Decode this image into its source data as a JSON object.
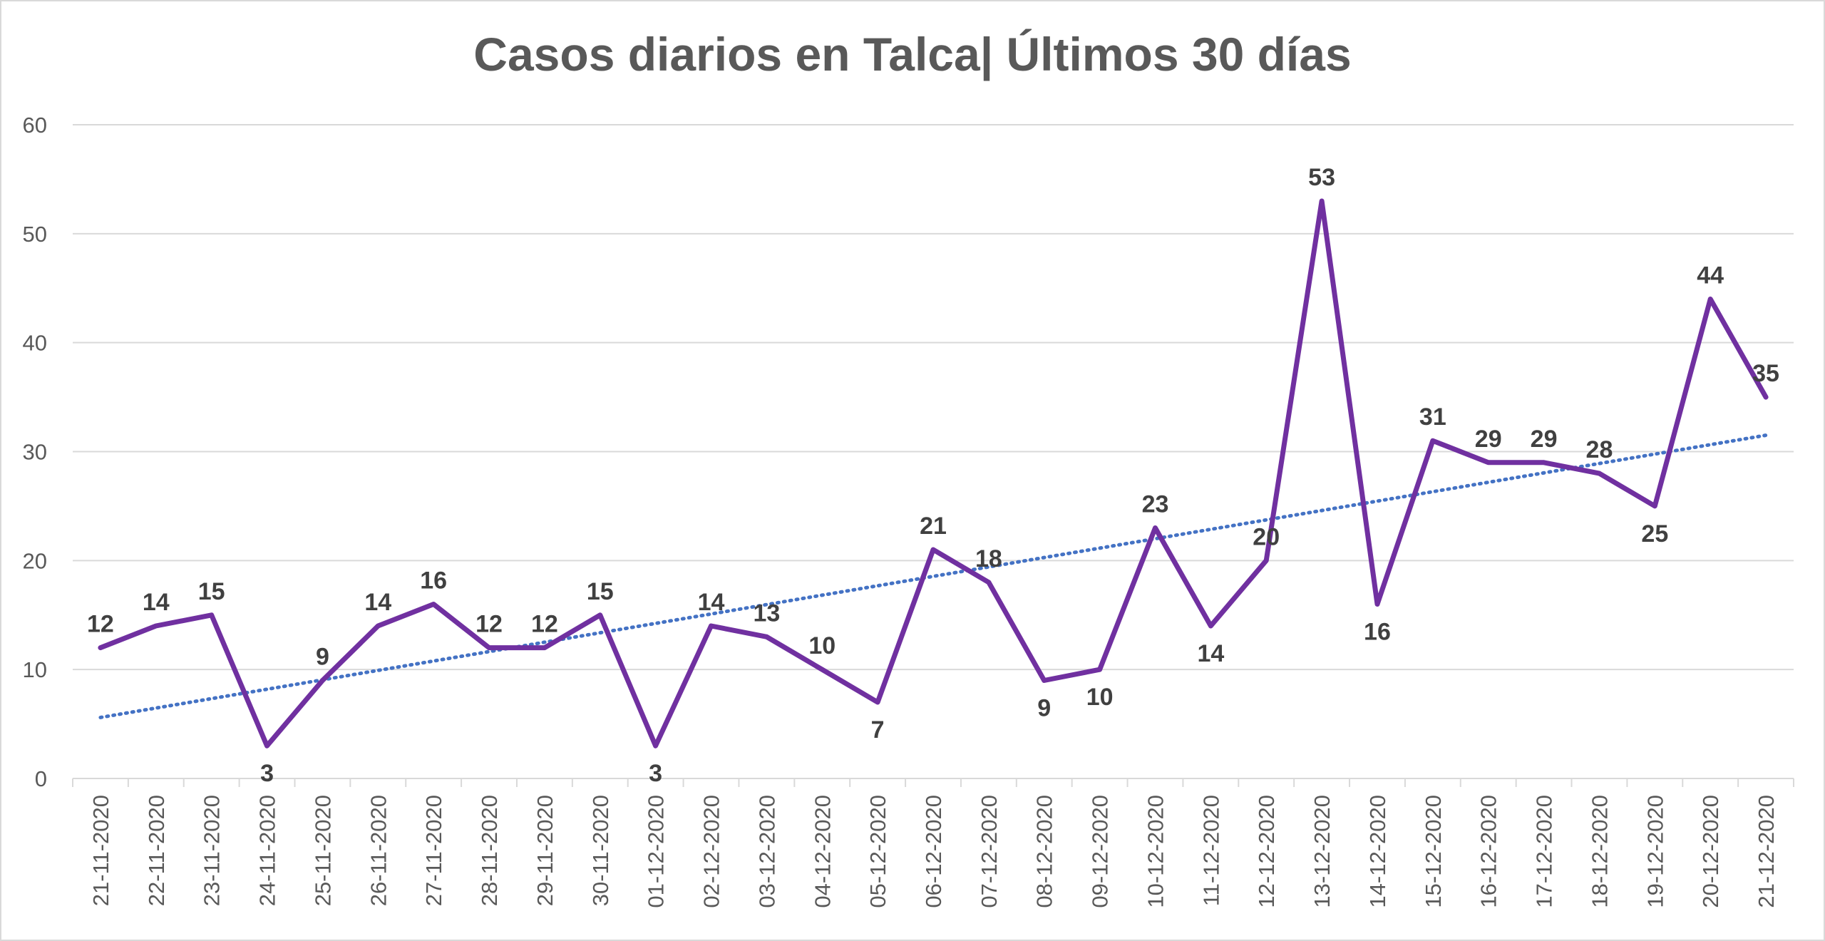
{
  "chart_data": {
    "type": "line",
    "title": "Casos diarios en Talca| Últimos 30 días",
    "xlabel": "",
    "ylabel": "",
    "ylim": [
      0,
      60
    ],
    "yticks": [
      0,
      10,
      20,
      30,
      40,
      50,
      60
    ],
    "grid": true,
    "legend": "none",
    "categories": [
      "21-11-2020",
      "22-11-2020",
      "23-11-2020",
      "24-11-2020",
      "25-11-2020",
      "26-11-2020",
      "27-11-2020",
      "28-11-2020",
      "29-11-2020",
      "30-11-2020",
      "01-12-2020",
      "02-12-2020",
      "03-12-2020",
      "04-12-2020",
      "05-12-2020",
      "06-12-2020",
      "07-12-2020",
      "08-12-2020",
      "09-12-2020",
      "10-12-2020",
      "11-12-2020",
      "12-12-2020",
      "13-12-2020",
      "14-12-2020",
      "15-12-2020",
      "16-12-2020",
      "17-12-2020",
      "18-12-2020",
      "19-12-2020",
      "20-12-2020",
      "21-12-2020"
    ],
    "series": [
      {
        "values": [
          12,
          14,
          15,
          3,
          9,
          14,
          16,
          12,
          12,
          15,
          3,
          14,
          13,
          10,
          7,
          21,
          18,
          9,
          10,
          23,
          14,
          20,
          53,
          16,
          31,
          29,
          29,
          28,
          25,
          44,
          35
        ],
        "color": "#7030a0",
        "style": "solid"
      }
    ],
    "trendline": {
      "type": "linear",
      "start": 5.6,
      "end": 31.5,
      "color": "#4472c4",
      "style": "dotted"
    },
    "label_positions": [
      "above",
      "above",
      "above",
      "below",
      "above",
      "above",
      "above",
      "above",
      "above",
      "above",
      "below",
      "above",
      "above",
      "above",
      "below",
      "above",
      "above",
      "below",
      "below",
      "above",
      "below",
      "above",
      "above",
      "below",
      "above",
      "above",
      "above",
      "above",
      "below",
      "above",
      "above"
    ]
  }
}
